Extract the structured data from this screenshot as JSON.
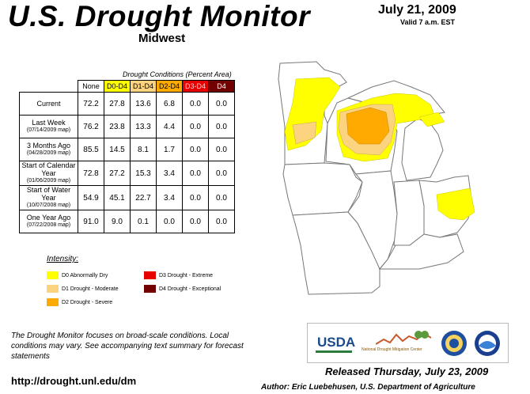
{
  "header": {
    "title": "U.S. Drought Monitor",
    "region": "Midwest",
    "date": "July 21, 2009",
    "valid": "Valid 7 a.m. EST"
  },
  "table": {
    "caption": "Drought Conditions (Percent Area)",
    "columns": [
      "None",
      "D0-D4",
      "D1-D4",
      "D2-D4",
      "D3-D4",
      "D4"
    ],
    "column_colors": [
      "#ffffff",
      "#ffff00",
      "#fcd37f",
      "#ffaa00",
      "#e60000",
      "#730000"
    ],
    "rows": [
      {
        "label": "Current",
        "sub": "",
        "values": [
          "72.2",
          "27.8",
          "13.6",
          "6.8",
          "0.0",
          "0.0"
        ]
      },
      {
        "label": "Last Week",
        "sub": "(07/14/2009 map)",
        "values": [
          "76.2",
          "23.8",
          "13.3",
          "4.4",
          "0.0",
          "0.0"
        ]
      },
      {
        "label": "3 Months Ago",
        "sub": "(04/28/2009 map)",
        "values": [
          "85.5",
          "14.5",
          "8.1",
          "1.7",
          "0.0",
          "0.0"
        ]
      },
      {
        "label": "Start of Calendar Year",
        "sub": "(01/06/2009 map)",
        "values": [
          "72.8",
          "27.2",
          "15.3",
          "3.4",
          "0.0",
          "0.0"
        ]
      },
      {
        "label": "Start of Water Year",
        "sub": "(10/07/2008 map)",
        "values": [
          "54.9",
          "45.1",
          "22.7",
          "3.4",
          "0.0",
          "0.0"
        ]
      },
      {
        "label": "One Year Ago",
        "sub": "(07/22/2008 map)",
        "values": [
          "91.0",
          "9.0",
          "0.1",
          "0.0",
          "0.0",
          "0.0"
        ]
      }
    ]
  },
  "legend": {
    "title": "Intensity:",
    "items": [
      {
        "label": "D0 Abnormally Dry",
        "color": "#ffff00"
      },
      {
        "label": "D1 Drought - Moderate",
        "color": "#fcd37f"
      },
      {
        "label": "D2 Drought - Severe",
        "color": "#ffaa00"
      },
      {
        "label": "D3 Drought - Extreme",
        "color": "#e60000"
      },
      {
        "label": "D4 Drought - Exceptional",
        "color": "#730000"
      }
    ]
  },
  "footer": {
    "note": "The Drought Monitor focuses on broad-scale conditions. Local conditions may vary. See accompanying text summary for forecast statements",
    "url": "http://drought.unl.edu/dm",
    "released": "Released Thursday, July 23, 2009",
    "author": "Author: Eric Luebehusen, U.S. Department of Agriculture"
  },
  "logos": {
    "usda": "USDA",
    "ndmc": "National Drought Mitigation Center"
  }
}
